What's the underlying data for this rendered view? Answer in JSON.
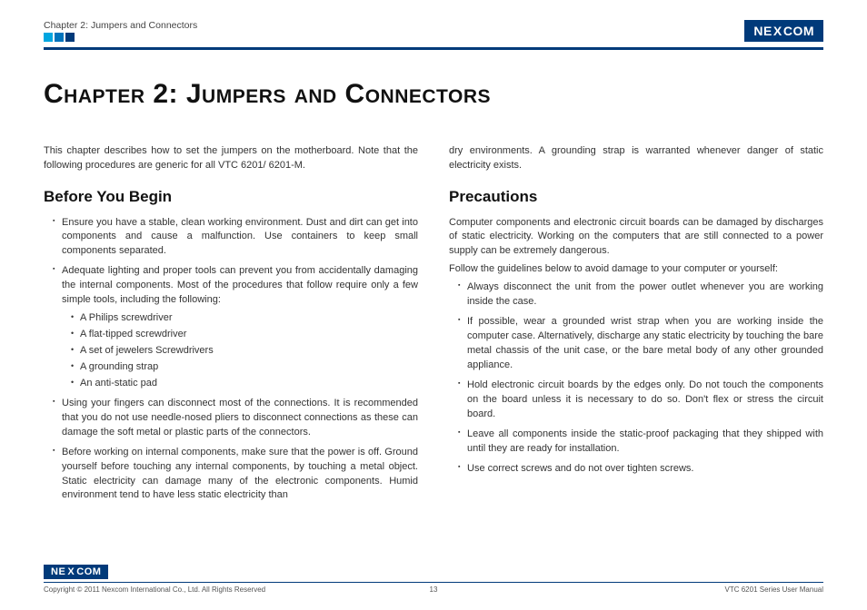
{
  "brand": {
    "name_left": "NE",
    "name_mid": "X",
    "name_right": "COM"
  },
  "header": {
    "breadcrumb": "Chapter 2: Jumpers and Connectors",
    "squares": [
      "#00a6e0",
      "#0074bd",
      "#003a7a"
    ]
  },
  "title": "Chapter 2: Jumpers and Connectors",
  "intro": "This chapter describes how to set the jumpers on the motherboard. Note that the following procedures are generic for all VTC 6201/ 6201-M.",
  "left": {
    "heading": "Before You Begin",
    "items": [
      {
        "text": "Ensure you have a stable, clean working environment. Dust and dirt can get into components and cause a malfunction. Use containers to keep small components separated."
      },
      {
        "text": "Adequate lighting and proper tools can prevent you from accidentally damaging the internal components. Most of the procedures that follow require only a few simple tools, including the following:",
        "sub": [
          "A Philips screwdriver",
          "A flat-tipped screwdriver",
          "A set of jewelers Screwdrivers",
          "A grounding strap",
          "An anti-static pad"
        ]
      },
      {
        "text": "Using your fingers can disconnect most of the connections. It is recommended that you do not use needle-nosed pliers to disconnect connections as these can damage the soft metal or plastic parts of the connectors."
      },
      {
        "text": "Before working on internal components, make sure that the power is off. Ground yourself before touching any internal components, by touching a metal object. Static electricity can damage many of the electronic components. Humid environment tend to have less static electricity than"
      }
    ]
  },
  "right": {
    "carry": "dry environments. A grounding strap is warranted whenever danger of static electricity exists.",
    "heading": "Precautions",
    "intro1": "Computer components and electronic circuit boards can be damaged by discharges of static electricity. Working on the computers that are still connected to a power supply can be extremely dangerous.",
    "intro2": "Follow the guidelines below to avoid damage to your computer or yourself:",
    "items": [
      "Always disconnect the unit from the power outlet whenever you are working inside the case.",
      "If possible, wear a grounded wrist strap when you are working inside the computer case. Alternatively, discharge any static electricity by touching the bare metal chassis of the unit case, or the bare metal body of any other grounded appliance.",
      "Hold electronic circuit boards by the edges only. Do not touch the components on the board unless it is necessary to do so. Don't flex or stress the circuit board.",
      "Leave all components inside the static-proof packaging that they shipped with until they are ready for installation.",
      "Use correct screws and do not over tighten screws."
    ]
  },
  "footer": {
    "copyright": "Copyright © 2011 Nexcom International Co., Ltd. All Rights Reserved",
    "page": "13",
    "doc": "VTC 6201 Series User Manual"
  }
}
